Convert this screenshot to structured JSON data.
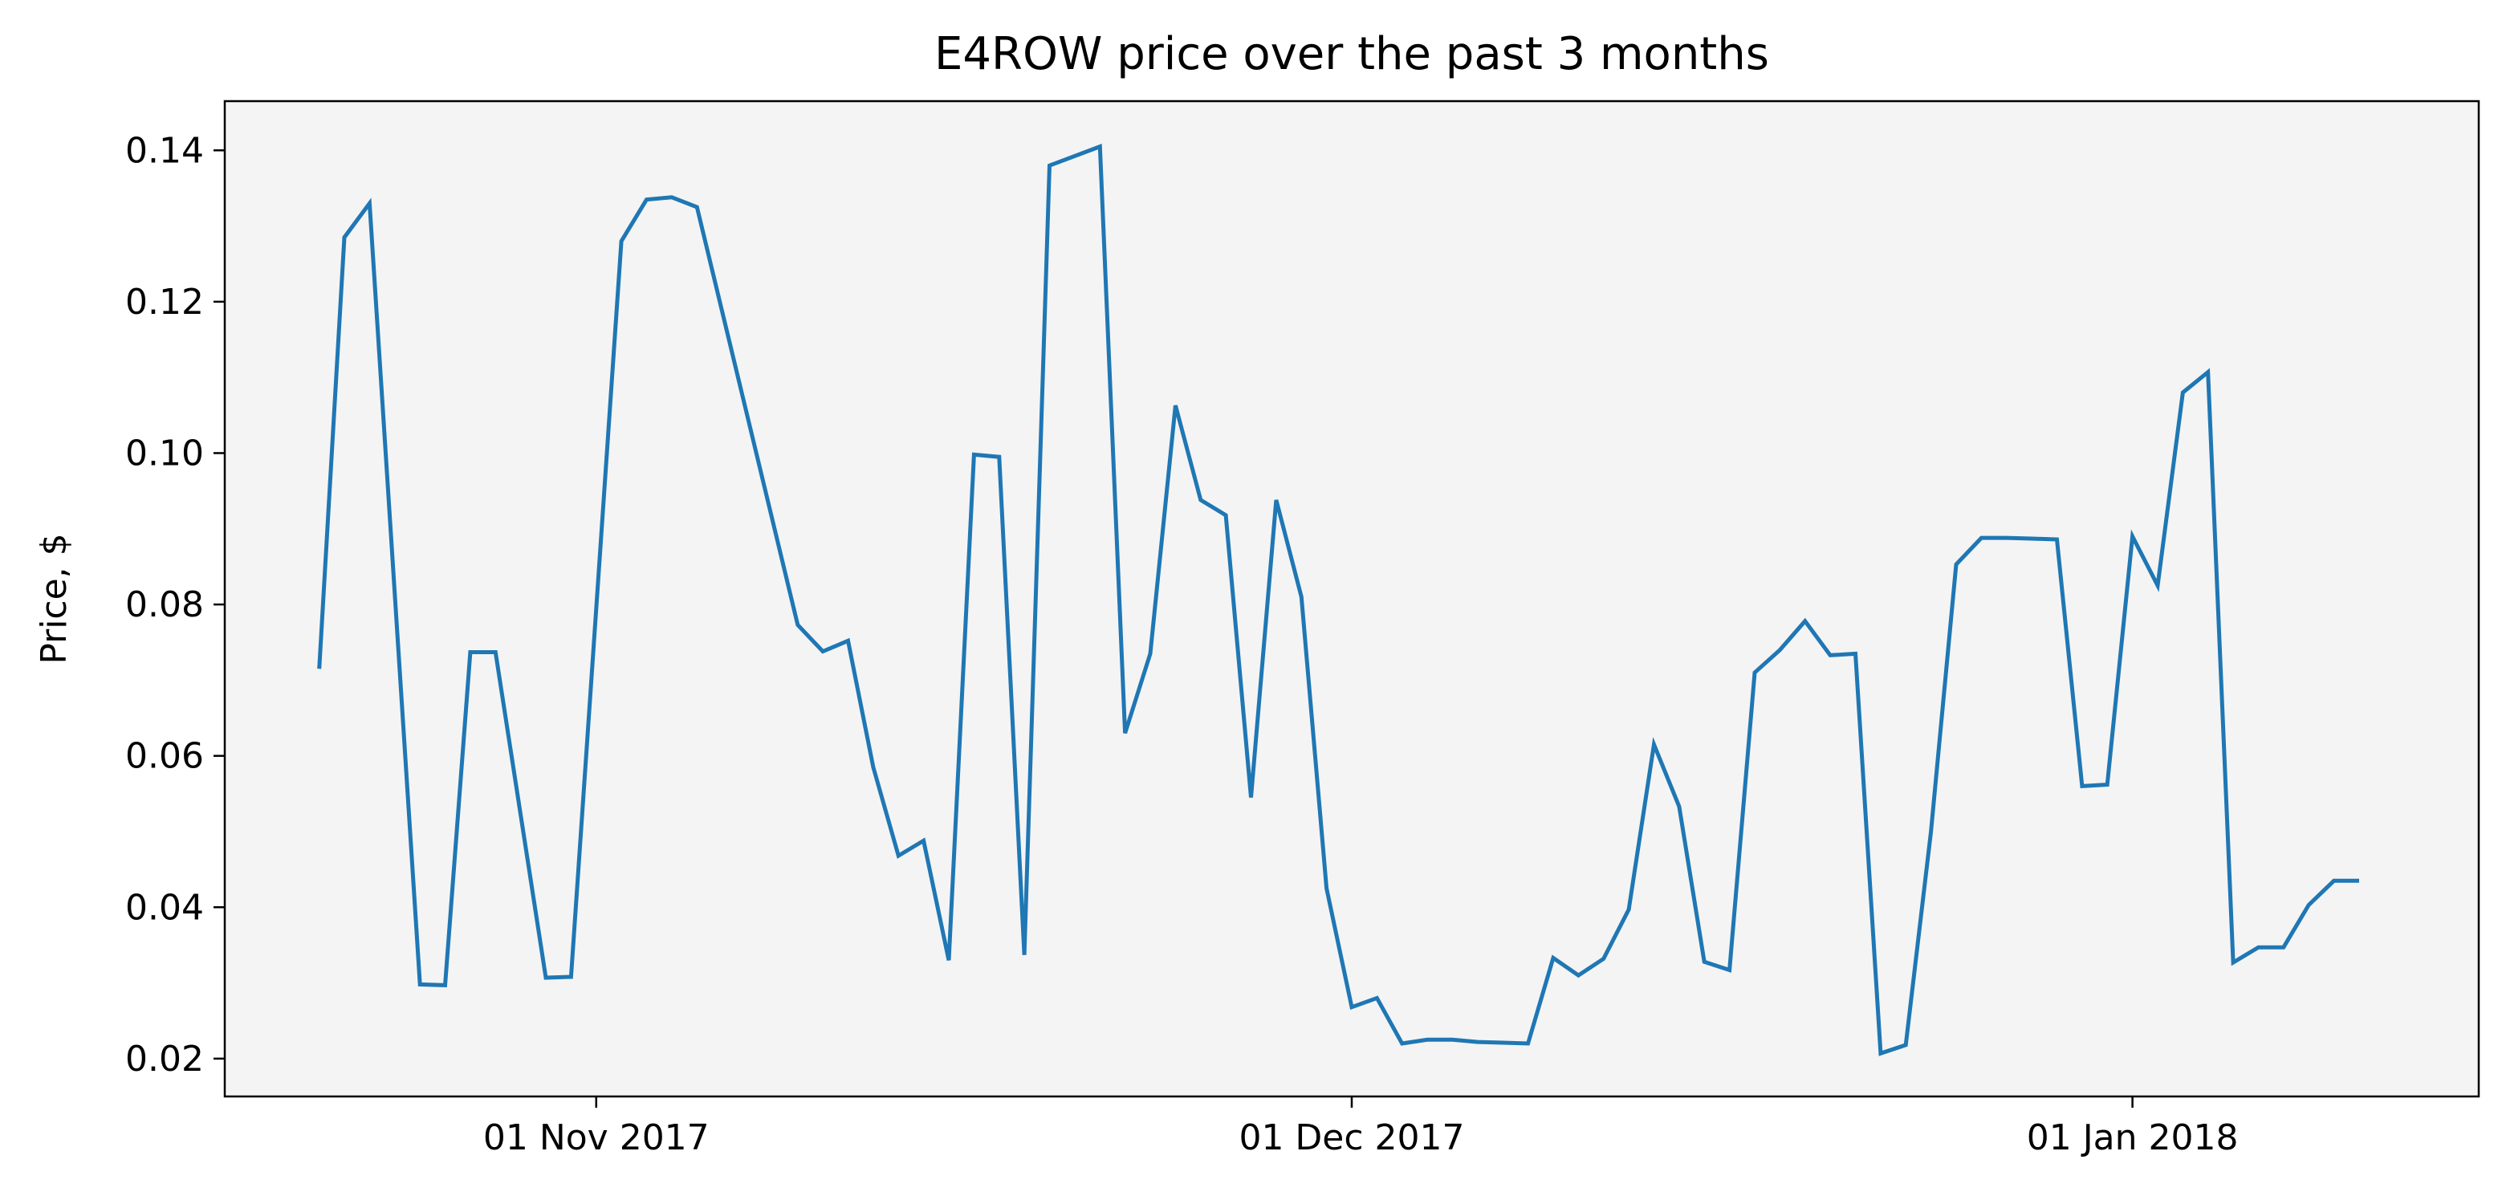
{
  "chart_data": {
    "type": "line",
    "title": "E4ROW price over the past 3 months",
    "xlabel": "",
    "ylabel": "Price, $",
    "x_ticks": [
      {
        "date": "2017-11-01",
        "label": "01 Nov 2017"
      },
      {
        "date": "2017-12-01",
        "label": "01 Dec 2017"
      },
      {
        "date": "2018-01-01",
        "label": "01 Jan 2018"
      }
    ],
    "y_ticks": [
      0.02,
      0.04,
      0.06,
      0.08,
      0.1,
      0.12,
      0.14
    ],
    "xlim": [
      "2017-10-17T06:00",
      "2018-01-14T18:00"
    ],
    "ylim": [
      0.015,
      0.1465
    ],
    "grid": false,
    "colors": {
      "line": "#1f77b4",
      "plot_bg": "#f4f4f4",
      "axes": "#000000"
    },
    "series": [
      {
        "x": [
          "2017-10-21",
          "2017-10-22",
          "2017-10-23",
          "2017-10-25",
          "2017-10-26",
          "2017-10-27",
          "2017-10-28",
          "2017-10-30",
          "2017-10-31",
          "2017-11-02",
          "2017-11-03",
          "2017-11-04",
          "2017-11-05",
          "2017-11-09",
          "2017-11-10",
          "2017-11-11",
          "2017-11-12",
          "2017-11-13",
          "2017-11-14",
          "2017-11-15",
          "2017-11-16",
          "2017-11-17",
          "2017-11-18",
          "2017-11-19",
          "2017-11-21",
          "2017-11-22",
          "2017-11-23",
          "2017-11-24",
          "2017-11-25",
          "2017-11-26",
          "2017-11-27",
          "2017-11-28",
          "2017-11-29",
          "2017-11-30",
          "2017-12-01",
          "2017-12-02",
          "2017-12-03",
          "2017-12-04",
          "2017-12-05",
          "2017-12-06",
          "2017-12-07",
          "2017-12-08",
          "2017-12-09",
          "2017-12-10",
          "2017-12-11",
          "2017-12-12",
          "2017-12-13",
          "2017-12-14",
          "2017-12-15",
          "2017-12-16",
          "2017-12-17",
          "2017-12-18",
          "2017-12-19",
          "2017-12-20",
          "2017-12-21",
          "2017-12-22",
          "2017-12-23",
          "2017-12-24",
          "2017-12-25",
          "2017-12-26",
          "2017-12-27",
          "2017-12-28",
          "2017-12-29",
          "2017-12-30",
          "2017-12-31",
          "2018-01-01",
          "2018-01-02",
          "2018-01-03",
          "2018-01-04",
          "2018-01-05",
          "2018-01-06",
          "2018-01-07",
          "2018-01-08",
          "2018-01-09",
          "2018-01-10"
        ],
        "y": [
          0.0715,
          0.1285,
          0.133,
          0.0298,
          0.0297,
          0.0737,
          0.0737,
          0.0307,
          0.0308,
          0.128,
          0.1335,
          0.1338,
          0.1325,
          0.0773,
          0.0738,
          0.0752,
          0.0585,
          0.0468,
          0.0488,
          0.033,
          0.0998,
          0.0995,
          0.0337,
          0.138,
          0.1405,
          0.063,
          0.0735,
          0.1063,
          0.0938,
          0.0918,
          0.0545,
          0.0938,
          0.081,
          0.0425,
          0.0268,
          0.028,
          0.022,
          0.0225,
          0.0225,
          0.0222,
          0.0221,
          0.022,
          0.0333,
          0.031,
          0.0332,
          0.0397,
          0.0615,
          0.0533,
          0.0328,
          0.0317,
          0.071,
          0.074,
          0.0778,
          0.0733,
          0.0735,
          0.0207,
          0.0218,
          0.05,
          0.0853,
          0.0888,
          0.0888,
          0.0887,
          0.0886,
          0.056,
          0.0562,
          0.089,
          0.0825,
          0.108,
          0.1107,
          0.0327,
          0.0347,
          0.0347,
          0.0403,
          0.0435,
          0.0435
        ]
      }
    ]
  }
}
